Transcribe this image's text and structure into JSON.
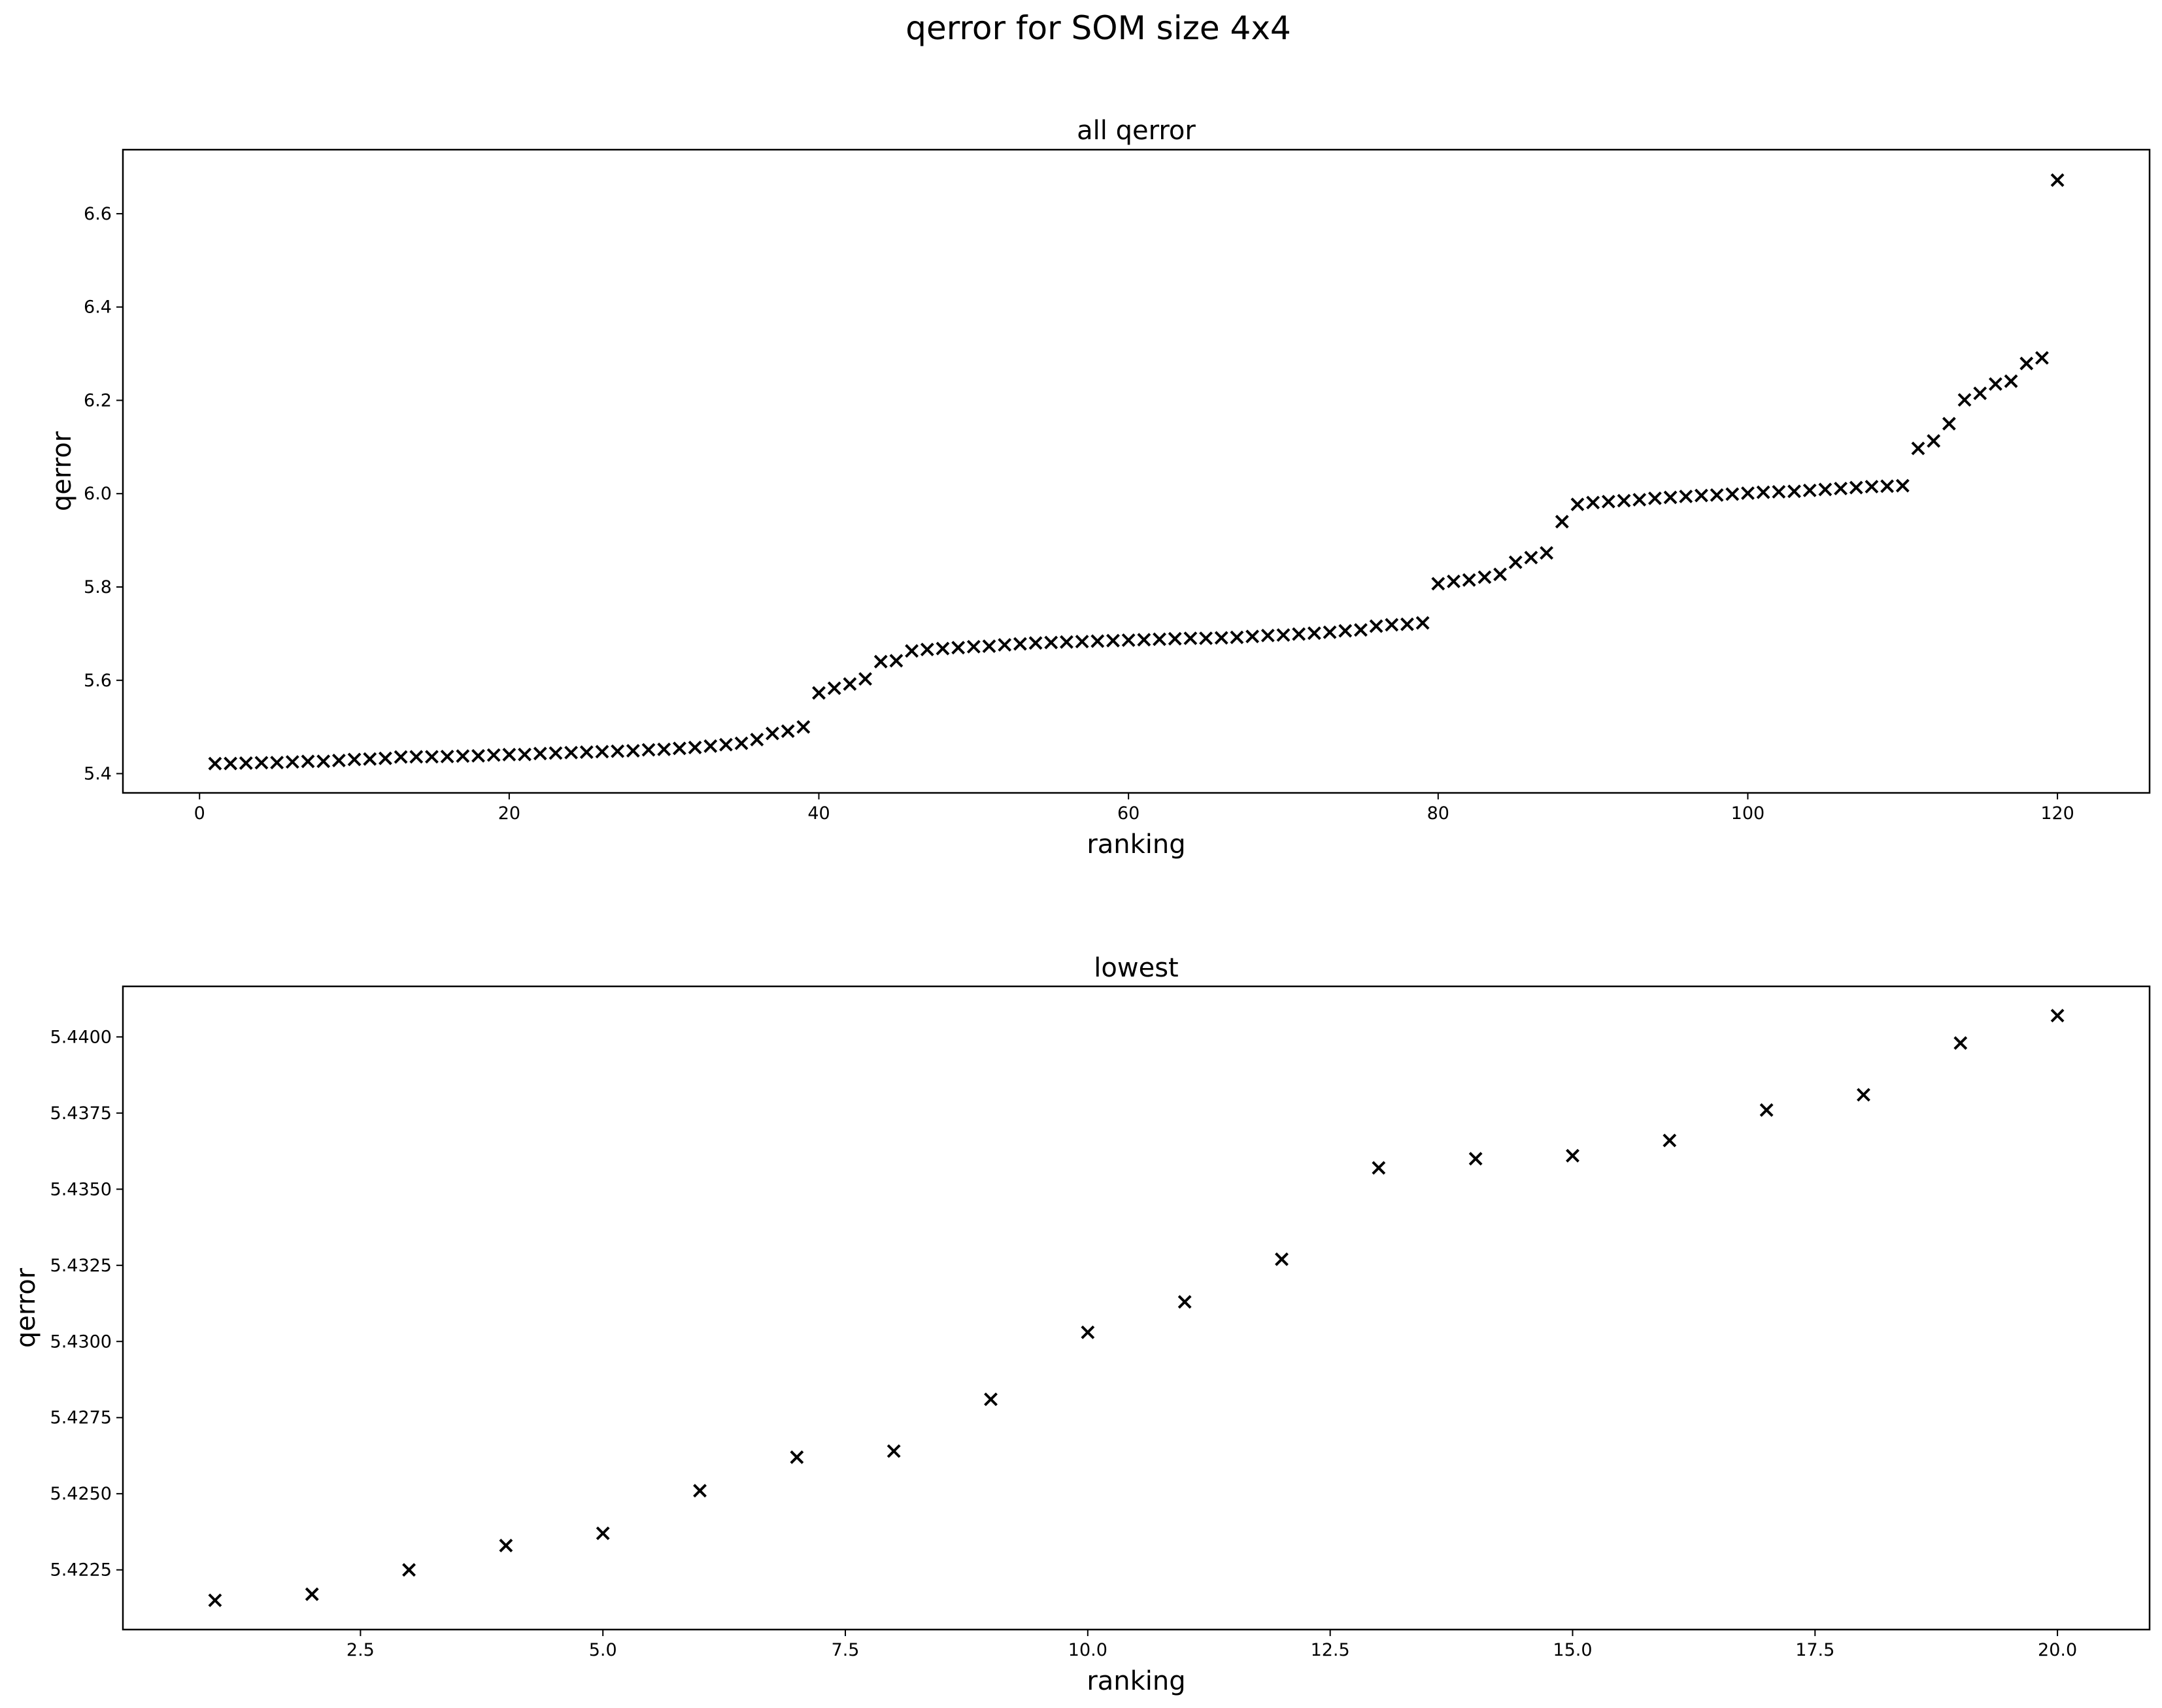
{
  "figure": {
    "title": "qerror for SOM size 4x4"
  },
  "chart_data": [
    {
      "type": "scatter",
      "title": "all qerror",
      "xlabel": "ranking",
      "ylabel": "qerror",
      "marker": "x",
      "color": "#000000",
      "xlim": [
        -4.95,
        125.95
      ],
      "ylim": [
        5.3587,
        6.7372
      ],
      "xticks": [
        0,
        20,
        40,
        60,
        80,
        100,
        120
      ],
      "xtick_labels": [
        "0",
        "20",
        "40",
        "60",
        "80",
        "100",
        "120"
      ],
      "yticks": [
        5.4,
        5.6,
        5.8,
        6.0,
        6.2,
        6.4,
        6.6
      ],
      "ytick_labels": [
        "5.4",
        "5.6",
        "5.8",
        "6.0",
        "6.2",
        "6.4",
        "6.6"
      ],
      "grid": false,
      "x": [
        1,
        2,
        3,
        4,
        5,
        6,
        7,
        8,
        9,
        10,
        11,
        12,
        13,
        14,
        15,
        16,
        17,
        18,
        19,
        20,
        21,
        22,
        23,
        24,
        25,
        26,
        27,
        28,
        29,
        30,
        31,
        32,
        33,
        34,
        35,
        36,
        37,
        38,
        39,
        40,
        41,
        42,
        43,
        44,
        45,
        46,
        47,
        48,
        49,
        50,
        51,
        52,
        53,
        54,
        55,
        56,
        57,
        58,
        59,
        60,
        61,
        62,
        63,
        64,
        65,
        66,
        67,
        68,
        69,
        70,
        71,
        72,
        73,
        74,
        75,
        76,
        77,
        78,
        79,
        80,
        81,
        82,
        83,
        84,
        85,
        86,
        87,
        88,
        89,
        90,
        91,
        92,
        93,
        94,
        95,
        96,
        97,
        98,
        99,
        100,
        101,
        102,
        103,
        104,
        105,
        106,
        107,
        108,
        109,
        110,
        111,
        112,
        113,
        114,
        115,
        116,
        117,
        118,
        119,
        120
      ],
      "y": [
        5.4215,
        5.4217,
        5.4225,
        5.4233,
        5.4237,
        5.4251,
        5.4262,
        5.4264,
        5.4281,
        5.4303,
        5.4313,
        5.4327,
        5.4357,
        5.436,
        5.4361,
        5.4366,
        5.4376,
        5.4381,
        5.4398,
        5.4407,
        5.441,
        5.443,
        5.444,
        5.445,
        5.446,
        5.447,
        5.448,
        5.449,
        5.451,
        5.452,
        5.454,
        5.456,
        5.459,
        5.462,
        5.465,
        5.473,
        5.486,
        5.491,
        5.5,
        5.573,
        5.583,
        5.592,
        5.603,
        5.64,
        5.642,
        5.663,
        5.666,
        5.668,
        5.67,
        5.672,
        5.673,
        5.676,
        5.678,
        5.68,
        5.681,
        5.682,
        5.683,
        5.684,
        5.685,
        5.686,
        5.687,
        5.688,
        5.689,
        5.69,
        5.69,
        5.691,
        5.692,
        5.694,
        5.696,
        5.697,
        5.699,
        5.701,
        5.703,
        5.706,
        5.708,
        5.716,
        5.719,
        5.72,
        5.723,
        5.807,
        5.812,
        5.815,
        5.821,
        5.827,
        5.853,
        5.863,
        5.873,
        5.94,
        5.977,
        5.981,
        5.983,
        5.985,
        5.987,
        5.99,
        5.992,
        5.994,
        5.996,
        5.997,
        5.999,
        6.001,
        6.003,
        6.004,
        6.005,
        6.007,
        6.009,
        6.011,
        6.013,
        6.015,
        6.016,
        6.017,
        6.097,
        6.113,
        6.15,
        6.201,
        6.215,
        6.235,
        6.241,
        6.279,
        6.291,
        6.672
      ]
    },
    {
      "type": "scatter",
      "title": "lowest",
      "xlabel": "ranking",
      "ylabel": "qerror",
      "marker": "x",
      "color": "#000000",
      "xlim": [
        0.05,
        20.95
      ],
      "ylim": [
        5.42054,
        5.44166
      ],
      "xticks": [
        2.5,
        5.0,
        7.5,
        10.0,
        12.5,
        15.0,
        17.5,
        20.0
      ],
      "xtick_labels": [
        "2.5",
        "5.0",
        "7.5",
        "10.0",
        "12.5",
        "15.0",
        "17.5",
        "20.0"
      ],
      "yticks": [
        5.4225,
        5.425,
        5.4275,
        5.43,
        5.4325,
        5.435,
        5.4375,
        5.44
      ],
      "ytick_labels": [
        "5.4225",
        "5.4250",
        "5.4275",
        "5.4300",
        "5.4325",
        "5.4350",
        "5.4375",
        "5.4400"
      ],
      "grid": false,
      "x": [
        1,
        2,
        3,
        4,
        5,
        6,
        7,
        8,
        9,
        10,
        11,
        12,
        13,
        14,
        15,
        16,
        17,
        18,
        19,
        20
      ],
      "y": [
        5.4215,
        5.4217,
        5.4225,
        5.4233,
        5.4237,
        5.4251,
        5.4262,
        5.4264,
        5.4281,
        5.4303,
        5.4313,
        5.4327,
        5.4357,
        5.436,
        5.4361,
        5.4366,
        5.4376,
        5.4381,
        5.4398,
        5.4407
      ]
    }
  ]
}
